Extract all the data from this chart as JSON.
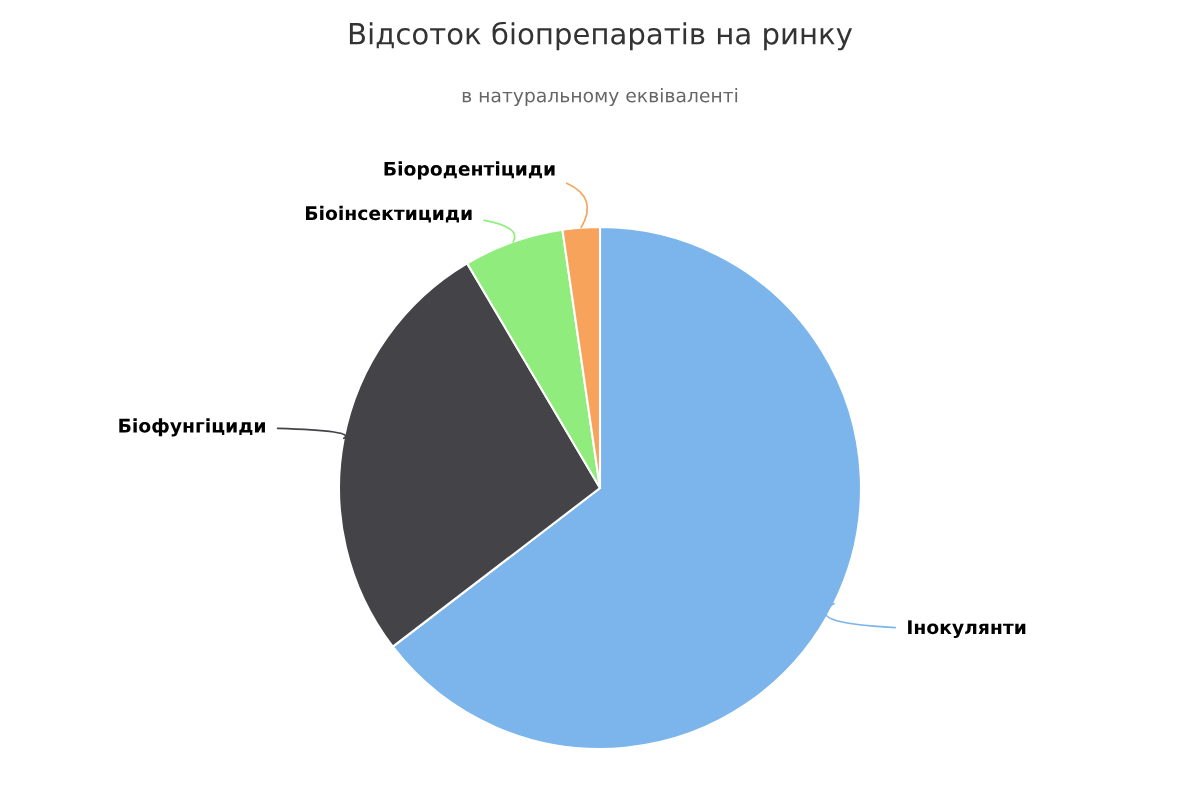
{
  "chart_data": {
    "type": "pie",
    "title": "Відсоток біопрепаратів на ринку",
    "subtitle": "в натуральному еквіваленті",
    "categories": [
      "Інокулянти",
      "Біофунгіциди",
      "Біоінсектициди",
      "Біородентіциди"
    ],
    "values": [
      64.6,
      26.9,
      6.2,
      2.3
    ],
    "colors": [
      "#7cb5ec",
      "#434348",
      "#90ed7d",
      "#f7a35c"
    ]
  }
}
